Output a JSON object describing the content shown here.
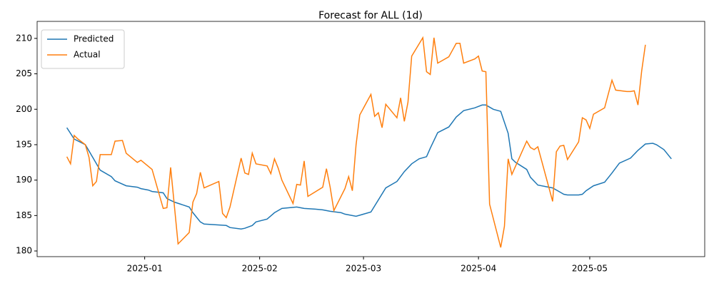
{
  "chart_data": {
    "type": "line",
    "title": "Forecast for ALL (1d)",
    "xlim": [
      -29,
      151
    ],
    "ylim": [
      179.2,
      212.4
    ],
    "xticks": [
      {
        "value": 0,
        "label": "2025-01"
      },
      {
        "value": 31,
        "label": "2025-02"
      },
      {
        "value": 59,
        "label": "2025-03"
      },
      {
        "value": 90,
        "label": "2025-04"
      },
      {
        "value": 120,
        "label": "2025-05"
      }
    ],
    "yticks": [
      180,
      185,
      190,
      195,
      200,
      205,
      210
    ],
    "legend": "upper left",
    "grid": false,
    "series": [
      {
        "name": "Predicted",
        "color": "#1f77b4",
        "x": [
          -21,
          -19,
          -16,
          -14,
          -12,
          -9,
          -8,
          -5,
          -2,
          -1,
          1,
          2,
          5,
          6,
          8,
          12,
          13,
          15,
          16,
          19,
          22,
          23,
          26,
          27,
          29,
          30,
          33,
          35,
          37,
          41,
          43,
          46,
          48,
          50,
          53,
          54,
          57,
          59,
          61,
          65,
          68,
          70,
          72,
          74,
          76,
          77,
          79,
          82,
          84,
          86,
          89,
          91,
          92,
          94,
          96,
          98,
          99,
          100,
          103,
          104,
          106,
          108,
          110,
          112,
          113,
          114,
          117,
          118,
          119,
          121,
          124,
          126,
          128,
          131,
          133,
          135,
          137,
          138,
          140,
          142
        ],
        "values": [
          197.4,
          195.8,
          195.0,
          193.2,
          191.4,
          190.5,
          189.9,
          189.2,
          189.0,
          188.8,
          188.6,
          188.4,
          188.2,
          187.4,
          186.9,
          186.2,
          185.4,
          184.1,
          183.8,
          183.7,
          183.6,
          183.3,
          183.1,
          183.2,
          183.6,
          184.1,
          184.5,
          185.4,
          186.0,
          186.2,
          186.0,
          185.9,
          185.8,
          185.6,
          185.4,
          185.2,
          184.9,
          185.2,
          185.5,
          188.9,
          189.8,
          191.2,
          192.3,
          193.0,
          193.3,
          194.5,
          196.7,
          197.5,
          198.9,
          199.8,
          200.2,
          200.6,
          200.6,
          200.0,
          199.7,
          196.6,
          193.0,
          192.5,
          191.5,
          190.4,
          189.3,
          189.1,
          188.9,
          188.3,
          188.0,
          187.9,
          187.9,
          188.0,
          188.5,
          189.2,
          189.7,
          191.0,
          192.4,
          193.1,
          194.2,
          195.1,
          195.2,
          195.0,
          194.3,
          193.0
        ]
      },
      {
        "name": "Actual",
        "color": "#ff7f0e",
        "x": [
          -21,
          -20,
          -19,
          -18,
          -16,
          -15,
          -14,
          -13,
          -12,
          -9,
          -8,
          -6,
          -5,
          -2,
          -1,
          2,
          5,
          6,
          7,
          9,
          12,
          13,
          14,
          15,
          16,
          20,
          21,
          22,
          23,
          26,
          27,
          28,
          29,
          30,
          33,
          34,
          35,
          36,
          37,
          40,
          41,
          42,
          43,
          44,
          48,
          49,
          50,
          51,
          54,
          55,
          56,
          57,
          58,
          61,
          62,
          63,
          64,
          65,
          68,
          69,
          70,
          71,
          72,
          75,
          76,
          77,
          78,
          79,
          82,
          84,
          85,
          86,
          89,
          90,
          91,
          92,
          93,
          96,
          97,
          98,
          99,
          103,
          104,
          105,
          106,
          110,
          111,
          112,
          113,
          114,
          117,
          118,
          119,
          120,
          121,
          124,
          126,
          127,
          130,
          131,
          132,
          133,
          134,
          135
        ],
        "values": [
          193.3,
          192.3,
          196.3,
          195.8,
          195.0,
          193.2,
          189.2,
          189.8,
          193.6,
          193.6,
          195.5,
          195.6,
          193.8,
          192.5,
          192.8,
          191.5,
          186.0,
          186.1,
          191.8,
          181.0,
          182.6,
          186.9,
          188.1,
          191.1,
          188.9,
          189.8,
          185.3,
          184.7,
          186.2,
          193.1,
          191.0,
          190.8,
          193.8,
          192.3,
          192.0,
          190.9,
          193.0,
          191.7,
          190.0,
          186.7,
          189.4,
          189.3,
          192.7,
          187.7,
          189.0,
          191.6,
          189.0,
          185.7,
          188.8,
          190.5,
          188.5,
          195.0,
          199.2,
          202.1,
          199.0,
          199.5,
          197.4,
          200.7,
          198.8,
          201.6,
          198.3,
          201.0,
          207.5,
          210.1,
          205.3,
          204.9,
          210.1,
          206.5,
          207.4,
          209.3,
          209.3,
          206.5,
          207.1,
          207.5,
          205.4,
          205.3,
          186.6,
          180.5,
          183.5,
          193.0,
          190.8,
          195.5,
          194.6,
          194.3,
          194.7,
          187.0,
          194.0,
          194.8,
          194.9,
          192.9,
          195.4,
          198.8,
          198.5,
          197.3,
          199.3,
          200.2,
          204.1,
          202.7,
          202.5,
          202.5,
          202.6,
          200.6,
          205.4,
          209.1
        ]
      }
    ]
  }
}
